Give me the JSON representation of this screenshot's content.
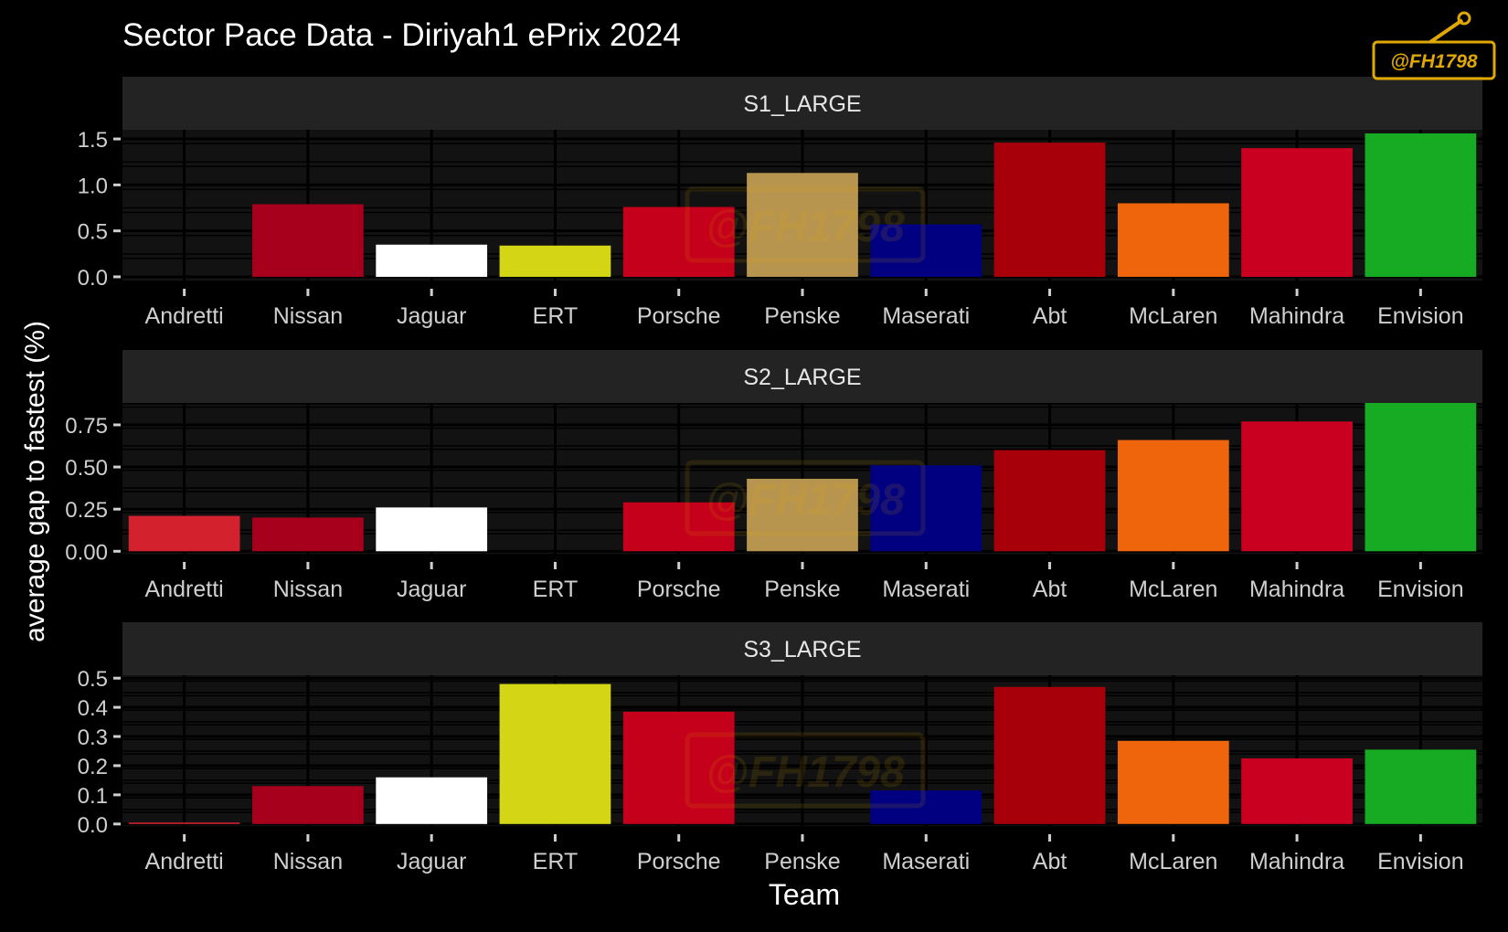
{
  "chart_data": {
    "type": "bar",
    "title": "Sector Pace Data - Diriyah1 ePrix 2024",
    "xlabel": "Team",
    "ylabel": "average gap to fastest (%)",
    "categories": [
      "Andretti",
      "Nissan",
      "Jaguar",
      "ERT",
      "Porsche",
      "Penske",
      "Maserati",
      "Abt",
      "McLaren",
      "Mahindra",
      "Envision"
    ],
    "team_colors": {
      "Andretti": "#d3212d",
      "Nissan": "#a6001c",
      "Jaguar": "#ffffff",
      "ERT": "#d4d615",
      "Porsche": "#c4001a",
      "Penske": "#b8954e",
      "Maserati": "#000080",
      "Abt": "#a8000a",
      "McLaren": "#ef650c",
      "Mahindra": "#c90020",
      "Envision": "#17ab23"
    },
    "panels": [
      {
        "label": "S1_LARGE",
        "ylim": [
          -0.05,
          1.6
        ],
        "ticks": [
          0.0,
          0.5,
          1.0,
          1.5
        ],
        "tick_labels": [
          "0.0",
          "0.5",
          "1.0",
          "1.5"
        ],
        "values": [
          null,
          0.79,
          0.35,
          0.34,
          0.76,
          1.13,
          0.57,
          1.46,
          0.8,
          1.4,
          1.56
        ]
      },
      {
        "label": "S2_LARGE",
        "ylim": [
          -0.02,
          0.88
        ],
        "ticks": [
          0.0,
          0.25,
          0.5,
          0.75
        ],
        "tick_labels": [
          "0.00",
          "0.25",
          "0.50",
          "0.75"
        ],
        "values": [
          0.21,
          0.2,
          0.26,
          null,
          0.29,
          0.43,
          0.51,
          0.6,
          0.66,
          0.77,
          0.88
        ]
      },
      {
        "label": "S3_LARGE",
        "ylim": [
          -0.01,
          0.51
        ],
        "ticks": [
          0.0,
          0.1,
          0.2,
          0.3,
          0.4,
          0.5
        ],
        "tick_labels": [
          "0.0",
          "0.1",
          "0.2",
          "0.3",
          "0.4",
          "0.5"
        ],
        "values": [
          0.005,
          0.13,
          0.16,
          0.48,
          0.385,
          null,
          0.115,
          0.47,
          0.285,
          0.225,
          0.255
        ]
      }
    ],
    "grid": true,
    "legend": "none"
  },
  "watermark": {
    "text": "@FH1798",
    "color": "#e0a800"
  }
}
